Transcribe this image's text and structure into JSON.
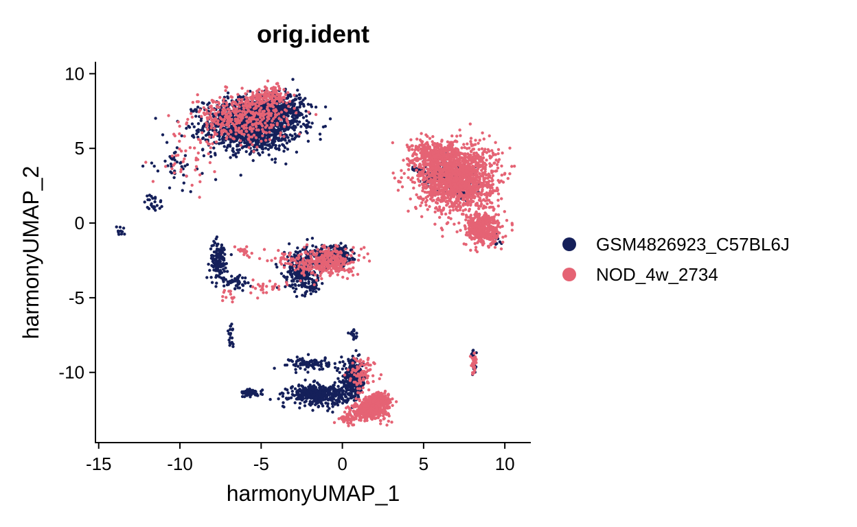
{
  "chart_data": {
    "type": "scatter",
    "title": "orig.ident",
    "xlabel": "harmonyUMAP_1",
    "ylabel": "harmonyUMAP_2",
    "xlim": [
      -15.2,
      11.6
    ],
    "ylim": [
      -14.7,
      10.8
    ],
    "xticks": [
      -15,
      -10,
      -5,
      0,
      5,
      10
    ],
    "xtick_labels": [
      "-15",
      "-10",
      "-5",
      "0",
      "5",
      "10"
    ],
    "yticks": [
      10,
      5,
      0,
      -5,
      -10
    ],
    "ytick_labels": [
      "10",
      "5",
      "0",
      "-5",
      "-10"
    ],
    "grid": false,
    "legend_position": "right",
    "series": [
      {
        "name": "GSM4826923_C57BL6J",
        "color": "#15205A",
        "clusters": [
          {
            "cx": -5.5,
            "cy": 6.6,
            "rx": 2.7,
            "ry": 1.6,
            "n": 1400
          },
          {
            "cx": -4.0,
            "cy": 7.8,
            "rx": 1.5,
            "ry": 0.8,
            "n": 300
          },
          {
            "cx": -10.3,
            "cy": 4.0,
            "rx": 1.2,
            "ry": 1.4,
            "n": 40
          },
          {
            "cx": -11.6,
            "cy": 1.3,
            "rx": 0.5,
            "ry": 0.6,
            "n": 25
          },
          {
            "cx": -13.7,
            "cy": -0.5,
            "rx": 0.3,
            "ry": 0.3,
            "n": 10
          },
          {
            "cx": 6.3,
            "cy": 3.2,
            "rx": 1.2,
            "ry": 0.9,
            "n": 200
          },
          {
            "cx": 7.6,
            "cy": 2.3,
            "rx": 0.6,
            "ry": 0.5,
            "n": 60
          },
          {
            "cx": 9.5,
            "cy": -1.0,
            "rx": 0.3,
            "ry": 0.4,
            "n": 12
          },
          {
            "cx": 4.5,
            "cy": 3.6,
            "rx": 0.4,
            "ry": 0.2,
            "n": 25
          },
          {
            "cx": -7.6,
            "cy": -2.5,
            "rx": 0.5,
            "ry": 1.2,
            "n": 140
          },
          {
            "cx": -6.5,
            "cy": -4.0,
            "rx": 0.6,
            "ry": 0.5,
            "n": 45
          },
          {
            "cx": -2.5,
            "cy": -3.1,
            "rx": 0.9,
            "ry": 1.3,
            "n": 300
          },
          {
            "cx": -0.2,
            "cy": -2.2,
            "rx": 0.7,
            "ry": 0.6,
            "n": 170
          },
          {
            "cx": -1.3,
            "cy": -2.2,
            "rx": 0.5,
            "ry": 0.5,
            "n": 90
          },
          {
            "cx": -1.8,
            "cy": -4.3,
            "rx": 0.3,
            "ry": 0.3,
            "n": 30
          },
          {
            "cx": -6.9,
            "cy": -7.5,
            "rx": 0.2,
            "ry": 0.7,
            "n": 20
          },
          {
            "cx": 0.7,
            "cy": -10.5,
            "rx": 0.7,
            "ry": 1.2,
            "n": 320
          },
          {
            "cx": -1.5,
            "cy": -11.5,
            "rx": 1.6,
            "ry": 0.6,
            "n": 420
          },
          {
            "cx": -2.0,
            "cy": -9.4,
            "rx": 1.1,
            "ry": 0.4,
            "n": 90
          },
          {
            "cx": -5.6,
            "cy": -11.4,
            "rx": 0.6,
            "ry": 0.25,
            "n": 45
          },
          {
            "cx": 8.1,
            "cy": -9.3,
            "rx": 0.15,
            "ry": 0.8,
            "n": 25
          },
          {
            "cx": 0.7,
            "cy": -7.5,
            "rx": 0.3,
            "ry": 0.3,
            "n": 15
          },
          {
            "cx": 2.0,
            "cy": -12.0,
            "rx": 0.4,
            "ry": 0.3,
            "n": 30
          }
        ]
      },
      {
        "name": "NOD_4w_2734",
        "color": "#E56374",
        "clusters": [
          {
            "cx": -6.3,
            "cy": 7.0,
            "rx": 2.6,
            "ry": 1.4,
            "n": 420
          },
          {
            "cx": -4.5,
            "cy": 8.5,
            "rx": 1.2,
            "ry": 0.6,
            "n": 140
          },
          {
            "cx": -9.5,
            "cy": 4.5,
            "rx": 2.0,
            "ry": 1.8,
            "n": 40
          },
          {
            "cx": 7.0,
            "cy": 3.0,
            "rx": 2.2,
            "ry": 2.0,
            "n": 1500
          },
          {
            "cx": 8.7,
            "cy": -0.4,
            "rx": 1.0,
            "ry": 1.0,
            "n": 420
          },
          {
            "cx": 5.8,
            "cy": 4.6,
            "rx": 1.4,
            "ry": 0.8,
            "n": 300
          },
          {
            "cx": -1.0,
            "cy": -2.6,
            "rx": 1.5,
            "ry": 0.9,
            "n": 320
          },
          {
            "cx": -3.3,
            "cy": -2.4,
            "rx": 1.0,
            "ry": 0.6,
            "n": 40
          },
          {
            "cx": -4.6,
            "cy": -4.3,
            "rx": 1.2,
            "ry": 0.4,
            "n": 25
          },
          {
            "cx": -6.0,
            "cy": -1.8,
            "rx": 0.4,
            "ry": 0.4,
            "n": 15
          },
          {
            "cx": -7.0,
            "cy": -5.0,
            "rx": 0.4,
            "ry": 0.4,
            "n": 12
          },
          {
            "cx": 1.7,
            "cy": -12.5,
            "rx": 1.0,
            "ry": 0.6,
            "n": 380
          },
          {
            "cx": 2.3,
            "cy": -11.9,
            "rx": 0.7,
            "ry": 0.5,
            "n": 180
          },
          {
            "cx": 0.4,
            "cy": -13.1,
            "rx": 0.5,
            "ry": 0.3,
            "n": 60
          },
          {
            "cx": 1.2,
            "cy": -10.2,
            "rx": 0.7,
            "ry": 1.1,
            "n": 90
          },
          {
            "cx": 8.1,
            "cy": -9.3,
            "rx": 0.15,
            "ry": 0.6,
            "n": 35
          }
        ]
      }
    ]
  }
}
